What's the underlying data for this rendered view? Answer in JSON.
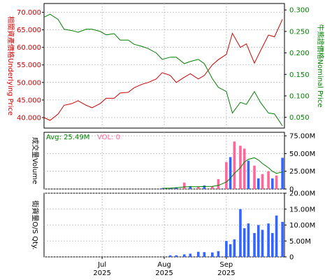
{
  "chart_data": [
    {
      "type": "line",
      "panel": "price",
      "x_start": "2025-06-02",
      "x_end": "2025-09-30",
      "grid": true,
      "left_axis": {
        "label": "相關資產價格Underlying Price",
        "ticks": [
          "40.000",
          "45.000",
          "50.000",
          "55.000",
          "60.000",
          "65.000",
          "70.000"
        ],
        "ylim": [
          37.0,
          72.5
        ],
        "color": "#cc0000"
      },
      "right_axis": {
        "label": "牛熊證價格Nominal Price",
        "ticks": [
          "0.050",
          "0.100",
          "0.150",
          "0.200",
          "0.250",
          "0.300"
        ],
        "ylim": [
          0.025,
          0.315
        ],
        "color": "#008000"
      },
      "series": [
        {
          "axis": "left",
          "color": "#cc0000",
          "x": [
            "2025-06-02",
            "2025-06-05",
            "2025-06-09",
            "2025-06-12",
            "2025-06-16",
            "2025-06-19",
            "2025-06-23",
            "2025-06-26",
            "2025-06-30",
            "2025-07-03",
            "2025-07-07",
            "2025-07-10",
            "2025-07-14",
            "2025-07-17",
            "2025-07-21",
            "2025-07-24",
            "2025-07-28",
            "2025-07-31",
            "2025-08-04",
            "2025-08-07",
            "2025-08-11",
            "2025-08-14",
            "2025-08-18",
            "2025-08-21",
            "2025-08-25",
            "2025-08-28",
            "2025-09-01",
            "2025-09-04",
            "2025-09-08",
            "2025-09-11",
            "2025-09-15",
            "2025-09-18",
            "2025-09-22",
            "2025-09-25",
            "2025-09-29"
          ],
          "values": [
            40.0,
            39.2,
            41.0,
            43.5,
            44.0,
            44.8,
            43.5,
            42.8,
            44.0,
            45.5,
            45.5,
            47.0,
            47.2,
            48.5,
            49.5,
            50.0,
            51.0,
            52.8,
            52.0,
            50.0,
            51.5,
            52.5,
            51.0,
            52.0,
            55.0,
            56.5,
            58.0,
            64.0,
            60.0,
            61.0,
            55.5,
            59.0,
            63.5,
            63.0,
            68.0
          ]
        },
        {
          "axis": "right",
          "color": "#008000",
          "x": [
            "2025-06-02",
            "2025-06-05",
            "2025-06-09",
            "2025-06-12",
            "2025-06-16",
            "2025-06-19",
            "2025-06-23",
            "2025-06-26",
            "2025-06-30",
            "2025-07-03",
            "2025-07-07",
            "2025-07-10",
            "2025-07-14",
            "2025-07-17",
            "2025-07-21",
            "2025-07-24",
            "2025-07-28",
            "2025-07-31",
            "2025-08-04",
            "2025-08-07",
            "2025-08-11",
            "2025-08-14",
            "2025-08-18",
            "2025-08-21",
            "2025-08-25",
            "2025-08-28",
            "2025-09-01",
            "2025-09-04",
            "2025-09-08",
            "2025-09-11",
            "2025-09-15",
            "2025-09-18",
            "2025-09-22",
            "2025-09-25",
            "2025-09-29"
          ],
          "values": [
            0.283,
            0.29,
            0.278,
            0.255,
            0.252,
            0.248,
            0.255,
            0.255,
            0.25,
            0.242,
            0.245,
            0.23,
            0.23,
            0.22,
            0.215,
            0.21,
            0.2,
            0.185,
            0.19,
            0.19,
            0.175,
            0.18,
            0.185,
            0.175,
            0.14,
            0.12,
            0.11,
            0.06,
            0.085,
            0.08,
            0.11,
            0.085,
            0.06,
            0.058,
            0.03
          ]
        }
      ]
    },
    {
      "type": "bar",
      "panel": "volume",
      "y_axis_label": "成交量Volume",
      "ticks": [
        "0",
        "25.00M",
        "50.00M",
        "75.00M"
      ],
      "ylim": [
        0,
        80
      ],
      "unit": "M",
      "legend": {
        "avg_label": "Avg: 25.49M",
        "vol_label": "VOL: 0"
      },
      "colors": {
        "up": "#ff6699",
        "down": "#3366ff",
        "avg": "#008000"
      },
      "x": [
        "2025-07-31",
        "2025-08-04",
        "2025-08-07",
        "2025-08-11",
        "2025-08-14",
        "2025-08-18",
        "2025-08-21",
        "2025-08-25",
        "2025-08-28",
        "2025-09-01",
        "2025-09-03",
        "2025-09-05",
        "2025-09-08",
        "2025-09-10",
        "2025-09-12",
        "2025-09-15",
        "2025-09-17",
        "2025-09-19",
        "2025-09-22",
        "2025-09-24",
        "2025-09-26",
        "2025-09-29"
      ],
      "values": [
        1.0,
        1.5,
        2.5,
        9.0,
        4.0,
        3.5,
        5.0,
        4.0,
        14.0,
        38.0,
        45.0,
        67.0,
        61.0,
        57.0,
        40.0,
        33.0,
        15.0,
        21.0,
        25.0,
        15.0,
        19.0,
        44.0
      ],
      "direction": [
        "down",
        "down",
        "down",
        "up",
        "down",
        "up",
        "down",
        "up",
        "up",
        "up",
        "down",
        "up",
        "up",
        "up",
        "down",
        "up",
        "down",
        "up",
        "up",
        "down",
        "up",
        "down"
      ],
      "avg": [
        1.0,
        1.2,
        1.6,
        3.0,
        3.3,
        3.3,
        3.6,
        3.8,
        5.0,
        10.0,
        15.0,
        22.0,
        30.0,
        38.0,
        42.0,
        44.0,
        41.0,
        36.0,
        30.0,
        25.0,
        22.0,
        24.0
      ]
    },
    {
      "type": "bar",
      "panel": "os_qty",
      "y_axis_label": "街貨量O/S Qty.",
      "ticks": [
        "0",
        "5.00M",
        "10.00M",
        "15.00M",
        "20.00M"
      ],
      "ylim": [
        0,
        20
      ],
      "unit": "M",
      "color": "#3366ff",
      "x": [
        "2025-08-04",
        "2025-08-07",
        "2025-08-11",
        "2025-08-14",
        "2025-08-18",
        "2025-08-21",
        "2025-08-25",
        "2025-08-28",
        "2025-09-01",
        "2025-09-03",
        "2025-09-05",
        "2025-09-08",
        "2025-09-10",
        "2025-09-12",
        "2025-09-15",
        "2025-09-17",
        "2025-09-19",
        "2025-09-22",
        "2025-09-24",
        "2025-09-26",
        "2025-09-29"
      ],
      "values": [
        0.5,
        0.5,
        0.8,
        1.0,
        1.6,
        1.5,
        1.4,
        1.8,
        5.0,
        4.0,
        5.5,
        15.0,
        9.0,
        10.5,
        7.5,
        10.0,
        8.5,
        10.5,
        7.5,
        13.0,
        11.0
      ],
      "x_ticks": [
        {
          "date": "2025-07-01",
          "month": "Jul",
          "year": "2025"
        },
        {
          "date": "2025-08-01",
          "month": "Aug",
          "year": "2025"
        },
        {
          "date": "2025-09-01",
          "month": "Sep",
          "year": "2025"
        }
      ]
    }
  ]
}
